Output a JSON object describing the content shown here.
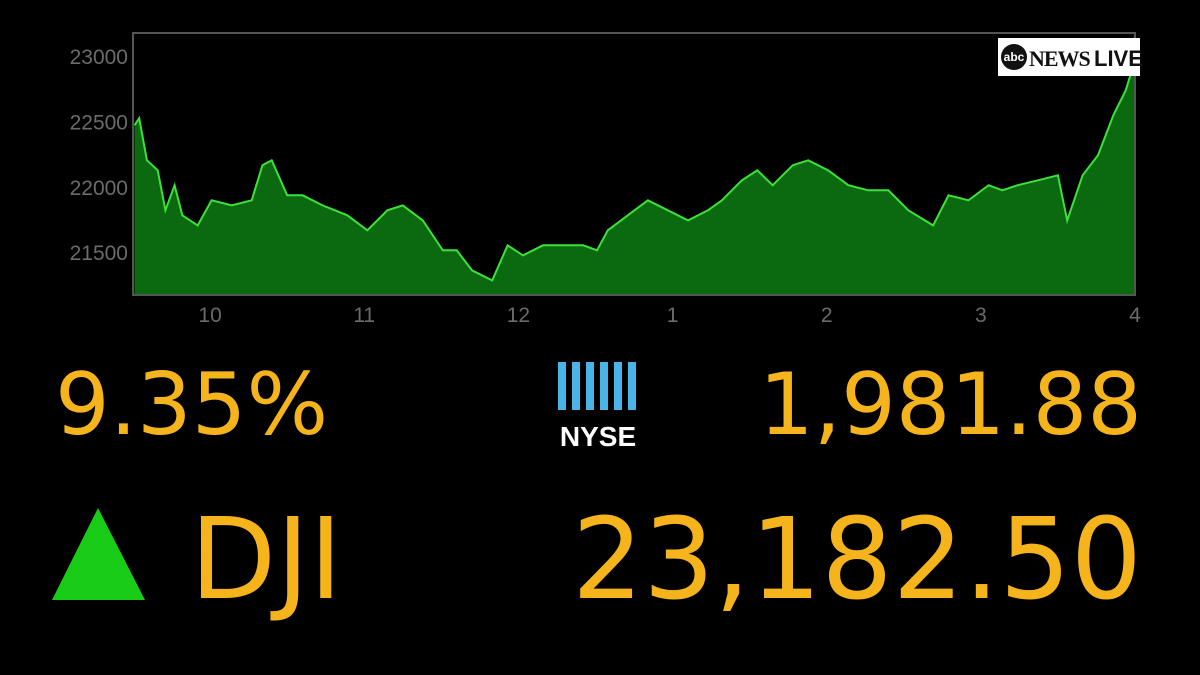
{
  "chart_data": {
    "type": "area",
    "x": [
      9.51,
      9.54,
      9.59,
      9.66,
      9.71,
      9.77,
      9.82,
      9.92,
      10.01,
      10.14,
      10.27,
      10.34,
      10.4,
      10.5,
      10.6,
      10.73,
      10.89,
      11.02,
      11.15,
      11.25,
      11.38,
      11.51,
      11.6,
      11.7,
      11.83,
      11.93,
      12.03,
      12.16,
      12.29,
      12.42,
      12.51,
      12.58,
      12.71,
      12.84,
      12.97,
      13.1,
      13.23,
      13.32,
      13.45,
      13.55,
      13.65,
      13.78,
      13.88,
      14.01,
      14.14,
      14.27,
      14.4,
      14.53,
      14.69,
      14.79,
      14.92,
      15.05,
      15.14,
      15.24,
      15.37,
      15.5,
      15.56,
      15.66,
      15.76,
      15.86,
      15.94,
      15.97,
      16.0
    ],
    "values": [
      22479,
      22533,
      22211,
      22134,
      21828,
      22020,
      21790,
      21713,
      21905,
      21866,
      21905,
      22173,
      22211,
      21943,
      21943,
      21866,
      21790,
      21675,
      21828,
      21866,
      21751,
      21522,
      21522,
      21368,
      21292,
      21560,
      21483,
      21560,
      21560,
      21560,
      21522,
      21675,
      21790,
      21905,
      21828,
      21751,
      21828,
      21905,
      22058,
      22134,
      22020,
      22173,
      22211,
      22134,
      22020,
      21981,
      21981,
      21828,
      21713,
      21943,
      21905,
      22020,
      21981,
      22020,
      22058,
      22096,
      21751,
      22096,
      22250,
      22556,
      22747,
      22862,
      23168
    ],
    "color": "#3ee03a",
    "fill": "#0b6a10",
    "xlim": [
      9.5,
      16
    ],
    "ylim": [
      21180,
      23185
    ],
    "xticks": [
      10,
      11,
      12,
      {
        "value": 13,
        "label": "1"
      },
      {
        "value": 14,
        "label": "2"
      },
      {
        "value": 15,
        "label": "3"
      },
      {
        "value": 16,
        "label": "4"
      }
    ],
    "yticks": [
      21500,
      22000,
      22500,
      23000
    ]
  },
  "logo": {
    "network": "abc",
    "brand": "NEWS",
    "live": "LIVE"
  },
  "ticker": {
    "change": "9.35%",
    "exchange": "NYSE",
    "points": "1,981.88",
    "index": "DJI",
    "level": "23,182.50"
  }
}
